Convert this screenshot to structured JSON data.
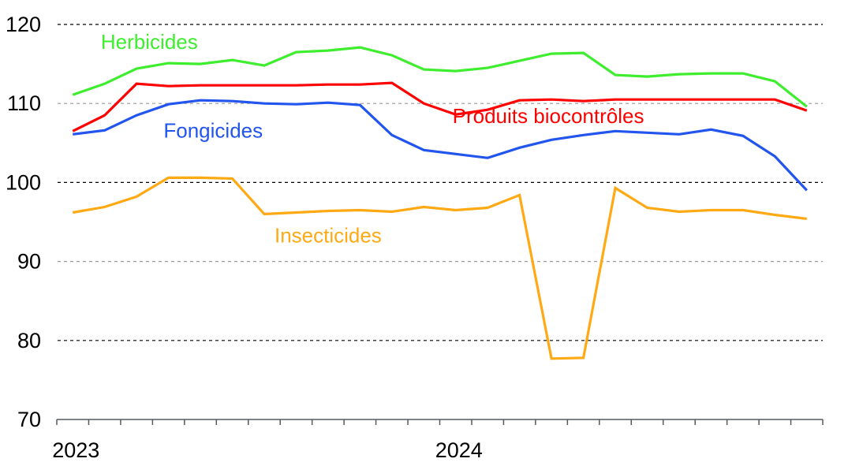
{
  "chart_data": {
    "type": "line",
    "title": "",
    "xlabel": "",
    "ylabel": "",
    "ylim": [
      70,
      120
    ],
    "yticks": [
      70,
      80,
      90,
      100,
      110,
      120
    ],
    "ytick_labels": [
      "70",
      "80",
      "90",
      "100",
      "110",
      "120"
    ],
    "x_tick_labels": [
      {
        "label": "2023",
        "month_index": 0
      },
      {
        "label": "2024",
        "month_index": 12
      }
    ],
    "months_count": 24,
    "x": [
      "2023-01",
      "2023-02",
      "2023-03",
      "2023-04",
      "2023-05",
      "2023-06",
      "2023-07",
      "2023-08",
      "2023-09",
      "2023-10",
      "2023-11",
      "2023-12",
      "2024-01",
      "2024-02",
      "2024-03",
      "2024-04",
      "2024-05",
      "2024-06",
      "2024-07",
      "2024-08",
      "2024-09",
      "2024-10",
      "2024-11",
      "2024-12"
    ],
    "grid": "horizontal-dashed",
    "legend": "inline-labels",
    "series": [
      {
        "name": "Herbicides",
        "color": "#3EEE2E",
        "values": [
          111.1,
          112.5,
          114.4,
          115.1,
          115.0,
          115.5,
          114.8,
          116.5,
          116.7,
          117.1,
          116.1,
          114.3,
          114.1,
          114.5,
          115.4,
          116.3,
          116.4,
          113.6,
          113.4,
          113.7,
          113.8,
          113.8,
          112.8,
          109.6
        ]
      },
      {
        "name": "Produits biocontrôles",
        "color": "#FF0000",
        "values": [
          106.5,
          108.5,
          112.5,
          112.2,
          112.3,
          112.3,
          112.3,
          112.3,
          112.4,
          112.4,
          112.6,
          110.0,
          108.6,
          109.2,
          110.4,
          110.5,
          110.3,
          110.5,
          110.5,
          110.5,
          110.5,
          110.5,
          110.5,
          109.1
        ]
      },
      {
        "name": "Fongicides",
        "color": "#2255EE",
        "values": [
          106.1,
          106.6,
          108.5,
          109.9,
          110.4,
          110.3,
          110.0,
          109.9,
          110.1,
          109.8,
          106.0,
          104.1,
          103.6,
          103.1,
          104.4,
          105.4,
          106.0,
          106.5,
          106.3,
          106.1,
          106.7,
          105.9,
          103.3,
          99.0
        ]
      },
      {
        "name": "Insecticides",
        "color": "#FFA914",
        "values": [
          96.2,
          96.9,
          98.2,
          100.6,
          100.6,
          100.5,
          96.0,
          96.2,
          96.4,
          96.5,
          96.3,
          96.9,
          96.5,
          96.8,
          98.4,
          77.7,
          77.8,
          99.3,
          96.8,
          96.3,
          96.5,
          96.5,
          95.9,
          95.4
        ]
      }
    ],
    "annotations": [
      {
        "text": "Herbicides",
        "series": "Herbicides",
        "anchor_value": 117.8,
        "anchor_month": 2.9
      },
      {
        "text": "Produits biocontrôles",
        "series": "Produits biocontrôles",
        "anchor_value": 108.4,
        "anchor_month": 15.4
      },
      {
        "text": "Fongicides",
        "series": "Fongicides",
        "anchor_value": 106.6,
        "anchor_month": 4.9
      },
      {
        "text": "Insecticides",
        "series": "Insecticides",
        "anchor_value": 93.3,
        "anchor_month": 8.5
      }
    ]
  }
}
